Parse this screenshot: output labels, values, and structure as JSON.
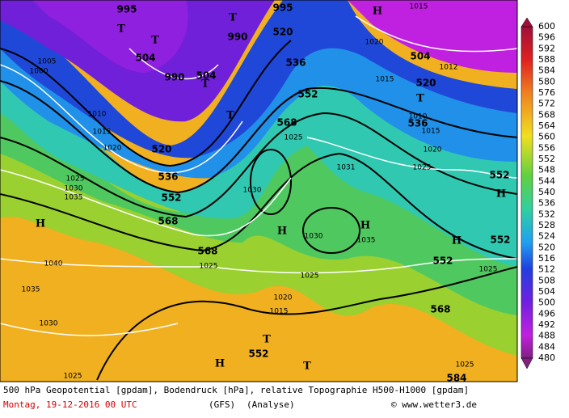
{
  "map": {
    "labels": [
      "995",
      "T",
      "504",
      "T",
      "990",
      "T",
      "995",
      "520",
      "504",
      "T",
      "990",
      "536",
      "552",
      "568",
      "T",
      "520",
      "536",
      "552",
      "568",
      "H",
      "1015",
      "504",
      "520",
      "T",
      "536",
      "552",
      "H",
      "552",
      "H",
      "552",
      "H",
      "1030",
      "1035",
      "H",
      "568",
      "568",
      "552",
      "T",
      "H",
      "T",
      "584",
      "H",
      "1040",
      "1035",
      "1030",
      "1025",
      "1025",
      "1025",
      "1020",
      "1015",
      "1025",
      "1020",
      "1031",
      "1025",
      "1030",
      "1005",
      "1000",
      "1010",
      "1015",
      "1020",
      "1025",
      "1030",
      "1035",
      "1025",
      "1025",
      "1010",
      "1015",
      "1020",
      "1015",
      "1012"
    ]
  },
  "legend": {
    "ticks": [
      600,
      596,
      592,
      588,
      584,
      580,
      576,
      572,
      568,
      564,
      560,
      556,
      552,
      548,
      544,
      540,
      536,
      532,
      528,
      524,
      520,
      516,
      512,
      508,
      504,
      500,
      496,
      492,
      488,
      484,
      480
    ]
  },
  "caption": {
    "line1": "500 hPa Geopotential [gpdam], Bodendruck [hPa], relative Topographie H500-H1000 [gpdam]",
    "date": "Montag, 19-12-2016  00 UTC",
    "model": "(GFS)",
    "run": "(Analyse)",
    "credit": "© www.wetter3.de"
  }
}
